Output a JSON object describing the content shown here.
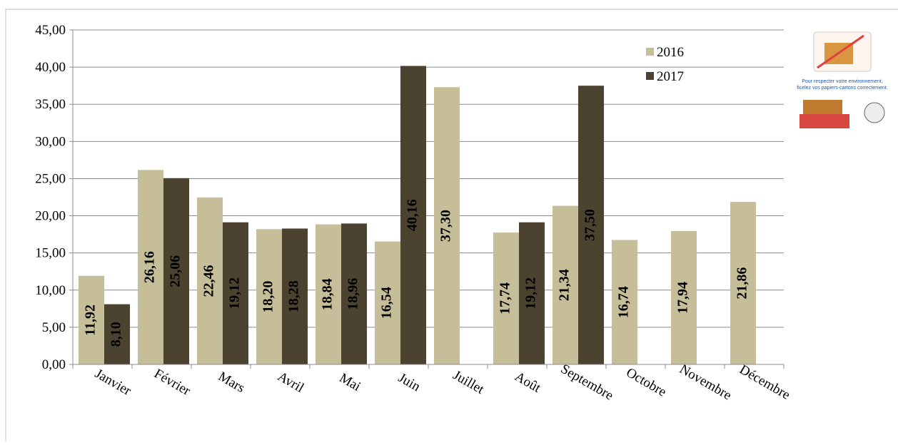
{
  "chart_data": {
    "type": "bar",
    "categories": [
      "Janvier",
      "Février",
      "Mars",
      "Avril",
      "Mai",
      "Juin",
      "Juillet",
      "Août",
      "Septembre",
      "Octobre",
      "Novembre",
      "Décembre"
    ],
    "series": [
      {
        "name": "2016",
        "color": "#c6bd99",
        "values": [
          11.92,
          26.16,
          22.46,
          18.2,
          18.84,
          16.54,
          37.3,
          17.74,
          21.34,
          16.74,
          17.94,
          21.86
        ],
        "value_labels": [
          "11,92",
          "26,16",
          "22,46",
          "18,20",
          "18,84",
          "16,54",
          "37,30",
          "17,74",
          "21,34",
          "16,74",
          "17,94",
          "21,86"
        ]
      },
      {
        "name": "2017",
        "color": "#4b4230",
        "values": [
          8.1,
          25.06,
          19.12,
          18.28,
          18.96,
          40.16,
          null,
          19.12,
          37.5,
          null,
          null,
          null
        ],
        "value_labels": [
          "8,10",
          "25,06",
          "19,12",
          "18,28",
          "18,96",
          "40,16",
          null,
          "19,12",
          "37,50",
          null,
          null,
          null
        ]
      }
    ],
    "ylim": [
      0,
      45
    ],
    "yticks": [
      {
        "value": 0,
        "label": "0,00"
      },
      {
        "value": 5,
        "label": "5,00"
      },
      {
        "value": 10,
        "label": "10,00"
      },
      {
        "value": 15,
        "label": "15,00"
      },
      {
        "value": 20,
        "label": "20,00"
      },
      {
        "value": 25,
        "label": "25,00"
      },
      {
        "value": 30,
        "label": "30,00"
      },
      {
        "value": 35,
        "label": "35,00"
      },
      {
        "value": 40,
        "label": "40,00"
      },
      {
        "value": 45,
        "label": "45,00"
      }
    ],
    "grid": true,
    "legend": "upper right",
    "annotation": "Pour respecter votre environnement, ficelez vos papiers-cartons correctement."
  }
}
